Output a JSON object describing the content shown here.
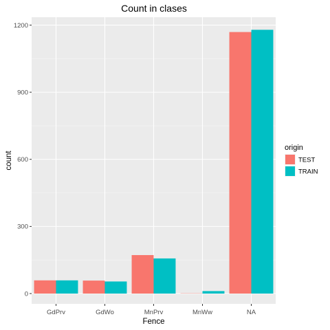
{
  "chart_data": {
    "type": "bar",
    "title": "Count in clases",
    "xlabel": "Fence",
    "ylabel": "count",
    "categories": [
      "GdPrv",
      "GdWo",
      "MnPrv",
      "MnWw",
      "NA"
    ],
    "series": [
      {
        "name": "TEST",
        "color": "#f8766d",
        "values": [
          59,
          58,
          172,
          1,
          1169
        ]
      },
      {
        "name": "TRAIN",
        "color": "#00bfc4",
        "values": [
          59,
          54,
          157,
          11,
          1179
        ]
      }
    ],
    "ylim": [
      0,
      1260
    ],
    "yticks": [
      0,
      300,
      600,
      900,
      1200
    ],
    "ytick_labels": [
      "0",
      "300",
      "600",
      "900",
      "1200"
    ],
    "grid": true,
    "panel_background": "#ebebeb",
    "legend": {
      "title": "origin",
      "position": "right"
    }
  }
}
